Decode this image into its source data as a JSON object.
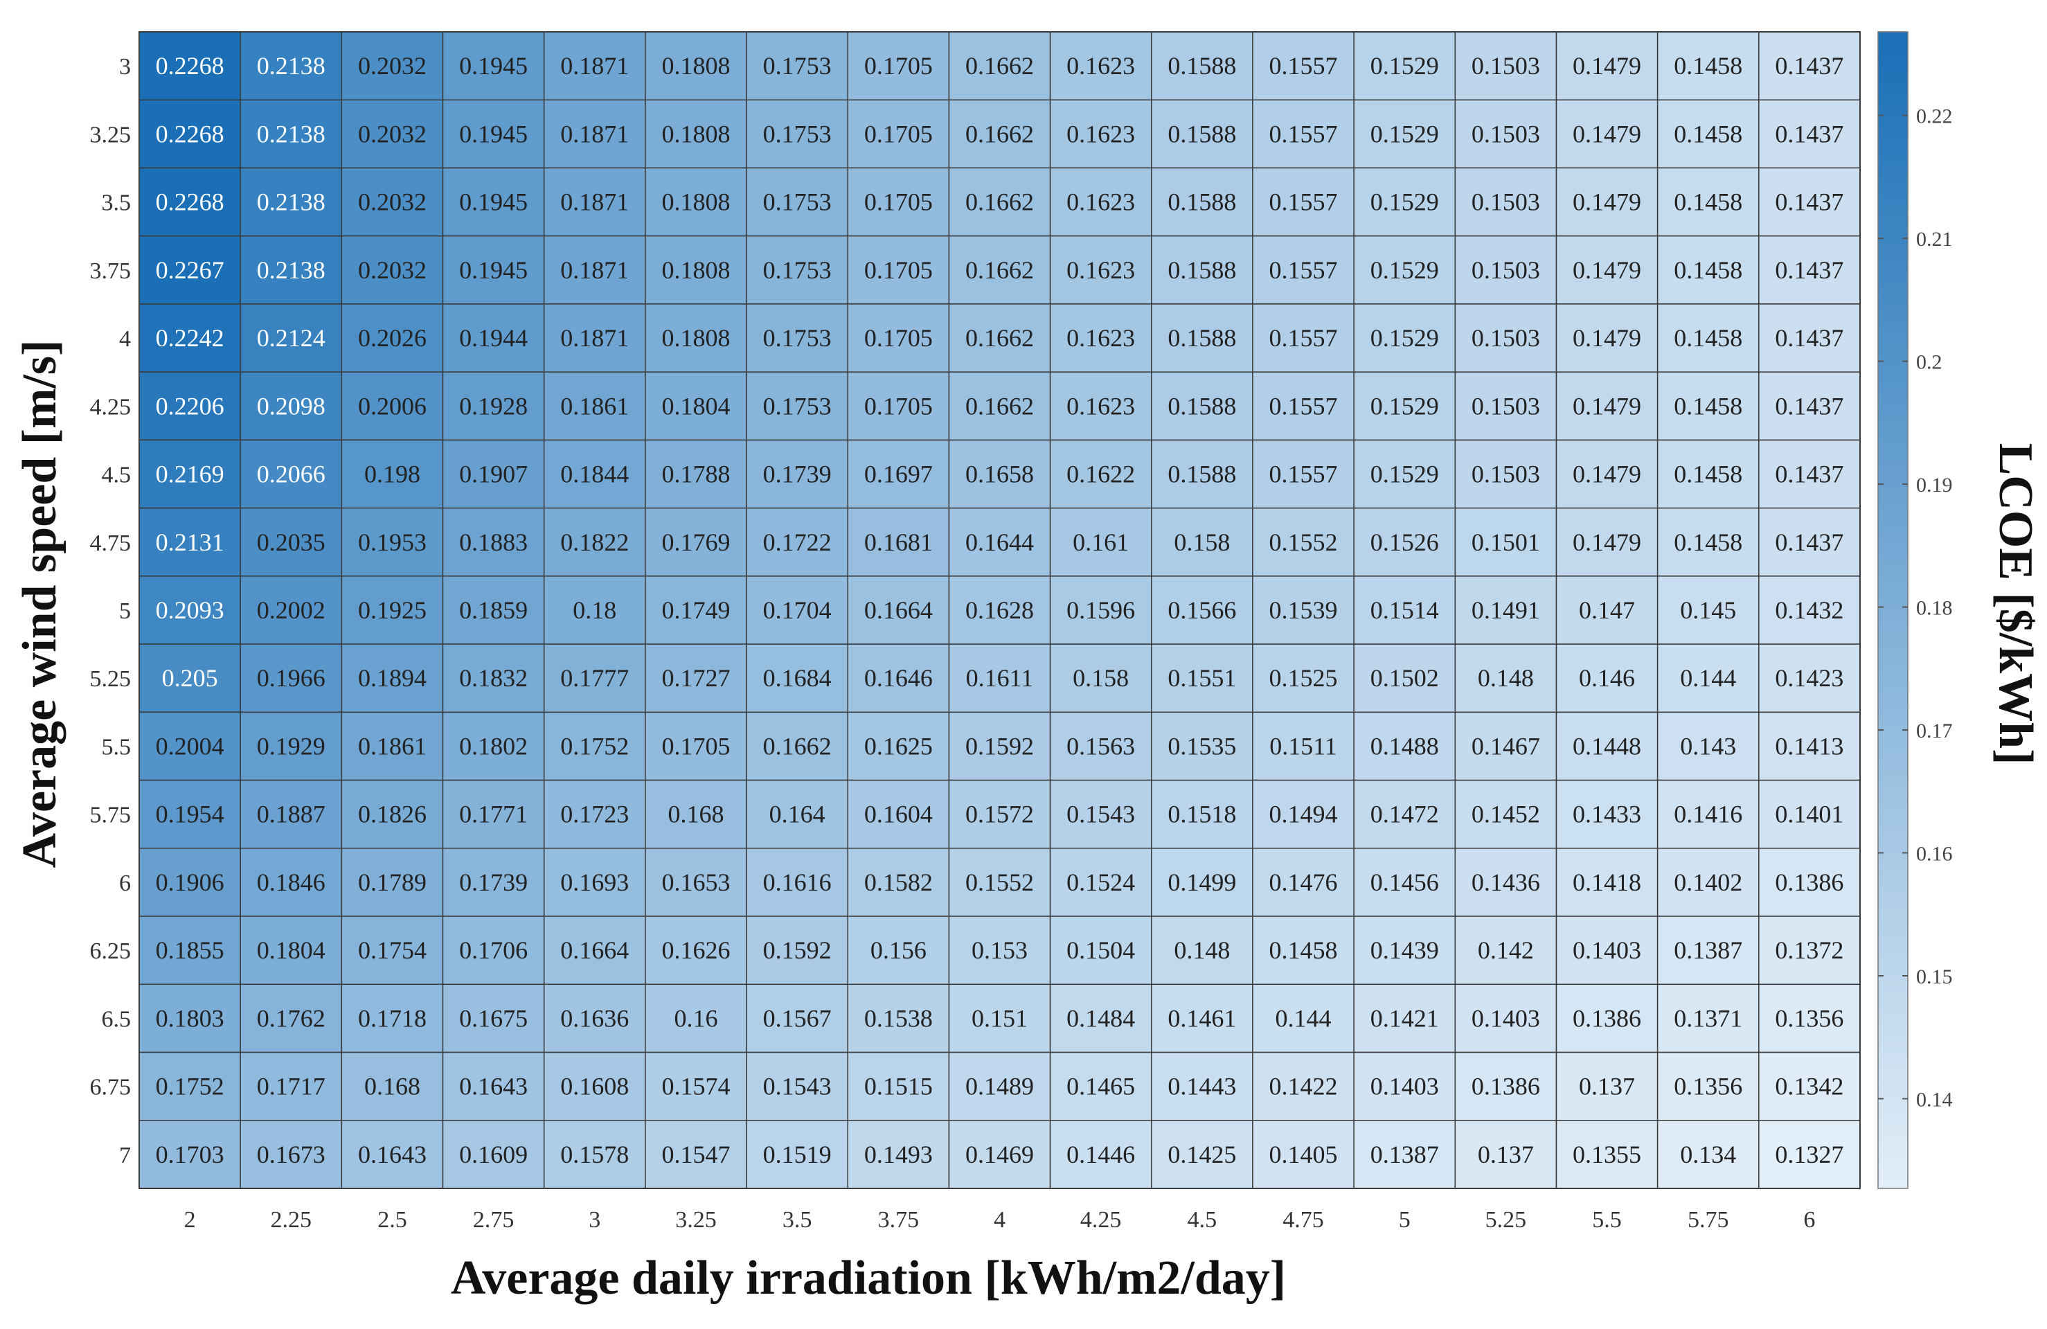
{
  "chart_data": {
    "type": "heatmap",
    "title": "",
    "xlabel": "Average daily irradiation [kWh/m2/day]",
    "ylabel": "Average wind speed [m/s]",
    "colorbar_label": "LCOE [$/kWh]",
    "x": [
      "2",
      "2.25",
      "2.5",
      "2.75",
      "3",
      "3.25",
      "3.5",
      "3.75",
      "4",
      "4.25",
      "4.5",
      "4.75",
      "5",
      "5.25",
      "5.5",
      "5.75",
      "6"
    ],
    "y": [
      "3",
      "3.25",
      "3.5",
      "3.75",
      "4",
      "4.25",
      "4.5",
      "4.75",
      "5",
      "5.25",
      "5.5",
      "5.75",
      "6",
      "6.25",
      "6.5",
      "6.75",
      "7"
    ],
    "values": [
      [
        "0.2268",
        "0.2138",
        "0.2032",
        "0.1945",
        "0.1871",
        "0.1808",
        "0.1753",
        "0.1705",
        "0.1662",
        "0.1623",
        "0.1588",
        "0.1557",
        "0.1529",
        "0.1503",
        "0.1479",
        "0.1458",
        "0.1437"
      ],
      [
        "0.2268",
        "0.2138",
        "0.2032",
        "0.1945",
        "0.1871",
        "0.1808",
        "0.1753",
        "0.1705",
        "0.1662",
        "0.1623",
        "0.1588",
        "0.1557",
        "0.1529",
        "0.1503",
        "0.1479",
        "0.1458",
        "0.1437"
      ],
      [
        "0.2268",
        "0.2138",
        "0.2032",
        "0.1945",
        "0.1871",
        "0.1808",
        "0.1753",
        "0.1705",
        "0.1662",
        "0.1623",
        "0.1588",
        "0.1557",
        "0.1529",
        "0.1503",
        "0.1479",
        "0.1458",
        "0.1437"
      ],
      [
        "0.2267",
        "0.2138",
        "0.2032",
        "0.1945",
        "0.1871",
        "0.1808",
        "0.1753",
        "0.1705",
        "0.1662",
        "0.1623",
        "0.1588",
        "0.1557",
        "0.1529",
        "0.1503",
        "0.1479",
        "0.1458",
        "0.1437"
      ],
      [
        "0.2242",
        "0.2124",
        "0.2026",
        "0.1944",
        "0.1871",
        "0.1808",
        "0.1753",
        "0.1705",
        "0.1662",
        "0.1623",
        "0.1588",
        "0.1557",
        "0.1529",
        "0.1503",
        "0.1479",
        "0.1458",
        "0.1437"
      ],
      [
        "0.2206",
        "0.2098",
        "0.2006",
        "0.1928",
        "0.1861",
        "0.1804",
        "0.1753",
        "0.1705",
        "0.1662",
        "0.1623",
        "0.1588",
        "0.1557",
        "0.1529",
        "0.1503",
        "0.1479",
        "0.1458",
        "0.1437"
      ],
      [
        "0.2169",
        "0.2066",
        "0.198",
        "0.1907",
        "0.1844",
        "0.1788",
        "0.1739",
        "0.1697",
        "0.1658",
        "0.1622",
        "0.1588",
        "0.1557",
        "0.1529",
        "0.1503",
        "0.1479",
        "0.1458",
        "0.1437"
      ],
      [
        "0.2131",
        "0.2035",
        "0.1953",
        "0.1883",
        "0.1822",
        "0.1769",
        "0.1722",
        "0.1681",
        "0.1644",
        "0.161",
        "0.158",
        "0.1552",
        "0.1526",
        "0.1501",
        "0.1479",
        "0.1458",
        "0.1437"
      ],
      [
        "0.2093",
        "0.2002",
        "0.1925",
        "0.1859",
        "0.18",
        "0.1749",
        "0.1704",
        "0.1664",
        "0.1628",
        "0.1596",
        "0.1566",
        "0.1539",
        "0.1514",
        "0.1491",
        "0.147",
        "0.145",
        "0.1432"
      ],
      [
        "0.205",
        "0.1966",
        "0.1894",
        "0.1832",
        "0.1777",
        "0.1727",
        "0.1684",
        "0.1646",
        "0.1611",
        "0.158",
        "0.1551",
        "0.1525",
        "0.1502",
        "0.148",
        "0.146",
        "0.144",
        "0.1423"
      ],
      [
        "0.2004",
        "0.1929",
        "0.1861",
        "0.1802",
        "0.1752",
        "0.1705",
        "0.1662",
        "0.1625",
        "0.1592",
        "0.1563",
        "0.1535",
        "0.1511",
        "0.1488",
        "0.1467",
        "0.1448",
        "0.143",
        "0.1413"
      ],
      [
        "0.1954",
        "0.1887",
        "0.1826",
        "0.1771",
        "0.1723",
        "0.168",
        "0.164",
        "0.1604",
        "0.1572",
        "0.1543",
        "0.1518",
        "0.1494",
        "0.1472",
        "0.1452",
        "0.1433",
        "0.1416",
        "0.1401"
      ],
      [
        "0.1906",
        "0.1846",
        "0.1789",
        "0.1739",
        "0.1693",
        "0.1653",
        "0.1616",
        "0.1582",
        "0.1552",
        "0.1524",
        "0.1499",
        "0.1476",
        "0.1456",
        "0.1436",
        "0.1418",
        "0.1402",
        "0.1386"
      ],
      [
        "0.1855",
        "0.1804",
        "0.1754",
        "0.1706",
        "0.1664",
        "0.1626",
        "0.1592",
        "0.156",
        "0.153",
        "0.1504",
        "0.148",
        "0.1458",
        "0.1439",
        "0.142",
        "0.1403",
        "0.1387",
        "0.1372"
      ],
      [
        "0.1803",
        "0.1762",
        "0.1718",
        "0.1675",
        "0.1636",
        "0.16",
        "0.1567",
        "0.1538",
        "0.151",
        "0.1484",
        "0.1461",
        "0.144",
        "0.1421",
        "0.1403",
        "0.1386",
        "0.1371",
        "0.1356"
      ],
      [
        "0.1752",
        "0.1717",
        "0.168",
        "0.1643",
        "0.1608",
        "0.1574",
        "0.1543",
        "0.1515",
        "0.1489",
        "0.1465",
        "0.1443",
        "0.1422",
        "0.1403",
        "0.1386",
        "0.137",
        "0.1356",
        "0.1342"
      ],
      [
        "0.1703",
        "0.1673",
        "0.1643",
        "0.1609",
        "0.1578",
        "0.1547",
        "0.1519",
        "0.1493",
        "0.1469",
        "0.1446",
        "0.1425",
        "0.1405",
        "0.1387",
        "0.137",
        "0.1355",
        "0.134",
        "0.1327"
      ]
    ],
    "colorbar": {
      "range": [
        0.1327,
        0.2268
      ],
      "ticks": [
        "0.14",
        "0.15",
        "0.16",
        "0.17",
        "0.18",
        "0.19",
        "0.2",
        "0.21",
        "0.22"
      ],
      "color_low": "#e2eef8",
      "color_high": "#1a6fb6"
    },
    "cell_text_dark": "#222222",
    "cell_text_light": "#ffffff",
    "grid_color": "#3a3a3a"
  }
}
